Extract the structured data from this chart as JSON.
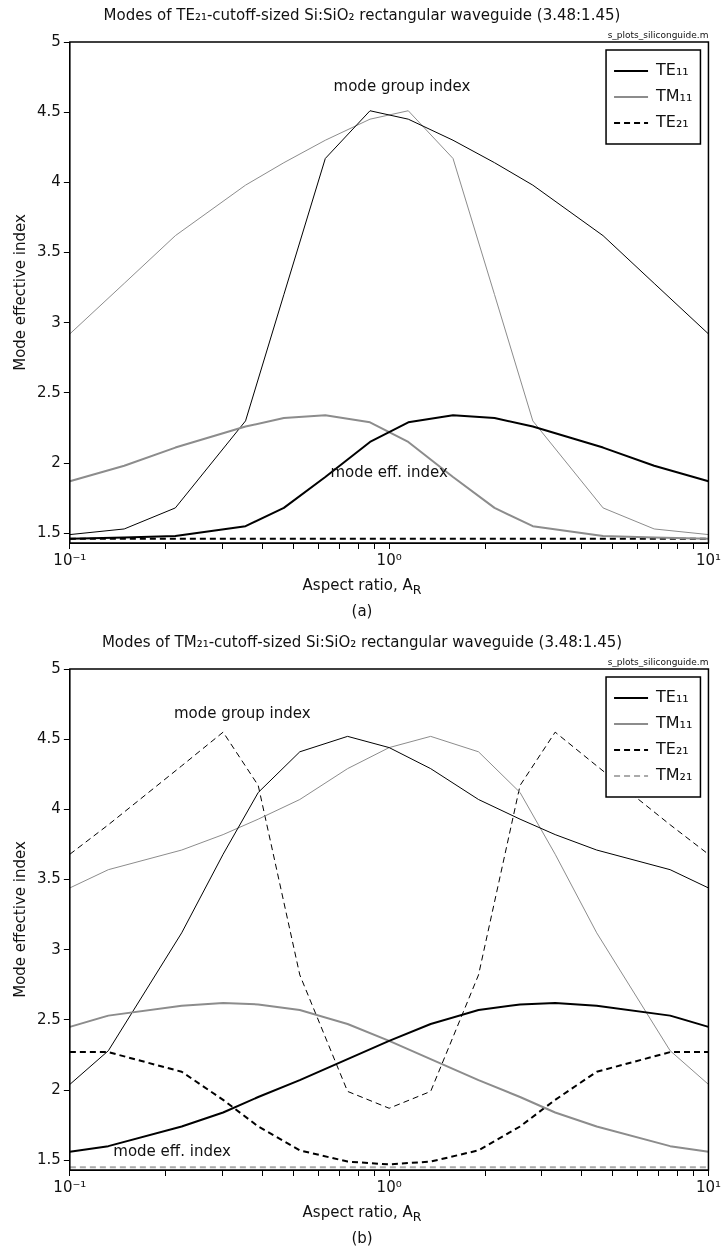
{
  "chart_data": [
    {
      "type": "line",
      "title": "Modes of TE₂₁-cutoff-sized Si:SiO₂ rectangular waveguide (3.48:1.45)",
      "xlabel": "Aspect ratio, A$_{R}$",
      "ylabel": "Mode effective index",
      "x": [
        0.1,
        0.148,
        0.214,
        0.355,
        0.468,
        0.631,
        0.871,
        1.148,
        1.585,
        2.138,
        2.818,
        4.677,
        6.761,
        10
      ],
      "series": [
        {
          "name": "TE₁₁",
          "color": "#000000",
          "values": [
            1.46,
            1.47,
            1.48,
            1.55,
            1.68,
            1.9,
            2.15,
            2.29,
            2.34,
            2.32,
            2.26,
            2.11,
            1.98,
            1.87
          ]
        },
        {
          "name": "TM₁₁",
          "color": "#8c8c8c",
          "values": [
            1.87,
            1.98,
            2.11,
            2.26,
            2.32,
            2.34,
            2.29,
            2.15,
            1.9,
            1.68,
            1.55,
            1.48,
            1.47,
            1.46
          ]
        },
        {
          "name": "TE₂₁",
          "color": "#000000",
          "line_style": "dashed",
          "values": [
            1.46,
            1.46,
            1.46,
            1.46,
            1.46,
            1.46,
            1.46,
            1.46,
            1.46,
            1.46,
            1.46,
            1.46,
            1.46,
            1.46
          ]
        },
        {
          "color": "#000000",
          "values": [
            1.49,
            1.53,
            1.68,
            2.3,
            3.2,
            4.17,
            4.51,
            4.45,
            4.3,
            4.14,
            3.98,
            3.62,
            3.28,
            2.92
          ]
        },
        {
          "color": "#8c8c8c",
          "values": [
            2.92,
            3.28,
            3.62,
            3.98,
            4.14,
            4.3,
            4.45,
            4.51,
            4.17,
            3.2,
            2.3,
            1.68,
            1.53,
            1.49
          ]
        }
      ],
      "xlim": [
        0.1,
        10
      ],
      "ylim": [
        1.43,
        5
      ],
      "log": "x",
      "legend": "top right",
      "marker": "none",
      "xticks": [
        {
          "value": 0.1,
          "label": "10⁻¹"
        },
        {
          "value": 0.2,
          "label": null
        },
        {
          "value": 0.3,
          "label": null
        },
        {
          "value": 0.4,
          "label": null
        },
        {
          "value": 0.5,
          "label": null
        },
        {
          "value": 0.6,
          "label": null
        },
        {
          "value": 0.7,
          "label": null
        },
        {
          "value": 0.8,
          "label": null
        },
        {
          "value": 0.9,
          "label": null
        },
        {
          "value": 1,
          "label": "10⁰"
        },
        {
          "value": 2,
          "label": null
        },
        {
          "value": 3,
          "label": null
        },
        {
          "value": 4,
          "label": null
        },
        {
          "value": 5,
          "label": null
        },
        {
          "value": 6,
          "label": null
        },
        {
          "value": 7,
          "label": null
        },
        {
          "value": 8,
          "label": null
        },
        {
          "value": 9,
          "label": null
        },
        {
          "value": 10,
          "label": "10¹"
        }
      ],
      "yticks": [
        1.5,
        2,
        2.5,
        3,
        3.5,
        4,
        4.5,
        5
      ],
      "annotations": [
        "mode group index",
        "mode eff. index",
        "s_plots_siliconguide.m",
        "(a)"
      ]
    },
    {
      "type": "line",
      "title": "Modes of TM₂₁-cutoff-sized Si:SiO₂ rectangular waveguide (3.48:1.45)",
      "xlabel": "Aspect ratio, A$_{R}$",
      "ylabel": "Mode effective index",
      "x": [
        0.1,
        0.132,
        0.224,
        0.302,
        0.389,
        0.525,
        0.741,
        1,
        1.349,
        1.905,
        2.57,
        3.311,
        4.467,
        7.586,
        10
      ],
      "series": [
        {
          "name": "TE₁₁",
          "color": "#000000",
          "values": [
            1.56,
            1.6,
            1.74,
            1.84,
            1.95,
            2.07,
            2.22,
            2.35,
            2.47,
            2.57,
            2.61,
            2.62,
            2.6,
            2.53,
            2.45
          ]
        },
        {
          "name": "TM₁₁",
          "color": "#8c8c8c",
          "values": [
            2.45,
            2.53,
            2.6,
            2.62,
            2.61,
            2.57,
            2.47,
            2.35,
            2.22,
            2.07,
            1.95,
            1.84,
            1.74,
            1.6,
            1.56
          ]
        },
        {
          "name": "TE₂₁",
          "color": "#000000",
          "line_style": "dashed",
          "values": [
            2.27,
            2.27,
            2.13,
            1.93,
            1.74,
            1.57,
            1.49,
            1.47,
            1.49,
            1.57,
            1.74,
            1.93,
            2.13,
            2.27,
            2.27
          ]
        },
        {
          "name": "TM₂₁",
          "color": "#aaaaaa",
          "line_style": "dashed",
          "values": [
            1.45,
            1.45,
            1.45,
            1.45,
            1.45,
            1.45,
            1.45,
            1.45,
            1.45,
            1.45,
            1.45,
            1.45,
            1.45,
            1.45,
            1.45
          ]
        },
        {
          "color": "#000000",
          "values": [
            2.04,
            2.28,
            3.12,
            3.68,
            4.12,
            4.41,
            4.52,
            4.44,
            4.29,
            4.07,
            3.93,
            3.82,
            3.71,
            3.57,
            3.44
          ]
        },
        {
          "color": "#8c8c8c",
          "values": [
            3.44,
            3.57,
            3.71,
            3.82,
            3.93,
            4.07,
            4.29,
            4.44,
            4.52,
            4.41,
            4.12,
            3.68,
            3.12,
            2.28,
            2.04
          ]
        },
        {
          "color": "#000000",
          "line_style": "dashed",
          "values": [
            3.68,
            3.89,
            4.31,
            4.55,
            4.17,
            2.82,
            1.99,
            1.87,
            1.99,
            2.82,
            4.17,
            4.55,
            4.31,
            3.89,
            3.68
          ]
        }
      ],
      "xlim": [
        0.1,
        10
      ],
      "ylim": [
        1.43,
        5
      ],
      "log": "x",
      "legend": "top right",
      "marker": "none",
      "xticks": [
        {
          "value": 0.1,
          "label": "10⁻¹"
        },
        {
          "value": 0.2,
          "label": null
        },
        {
          "value": 0.3,
          "label": null
        },
        {
          "value": 0.4,
          "label": null
        },
        {
          "value": 0.5,
          "label": null
        },
        {
          "value": 0.6,
          "label": null
        },
        {
          "value": 0.7,
          "label": null
        },
        {
          "value": 0.8,
          "label": null
        },
        {
          "value": 0.9,
          "label": null
        },
        {
          "value": 1,
          "label": "10⁰"
        },
        {
          "value": 2,
          "label": null
        },
        {
          "value": 3,
          "label": null
        },
        {
          "value": 4,
          "label": null
        },
        {
          "value": 5,
          "label": null
        },
        {
          "value": 6,
          "label": null
        },
        {
          "value": 7,
          "label": null
        },
        {
          "value": 8,
          "label": null
        },
        {
          "value": 9,
          "label": null
        },
        {
          "value": 10,
          "label": "10¹"
        }
      ],
      "yticks": [
        1.5,
        2,
        2.5,
        3,
        3.5,
        4,
        4.5,
        5
      ],
      "annotations": [
        "mode group index",
        "mode eff. index",
        "s_plots_siliconguide.m",
        "(b)"
      ]
    }
  ]
}
